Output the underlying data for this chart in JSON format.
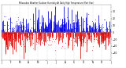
{
  "background_color": "#ffffff",
  "plot_bg_color": "#ffffff",
  "grid_color": "#aaaaaa",
  "ylim": [
    -40,
    40
  ],
  "ytick_values": [
    -30,
    -20,
    -10,
    0,
    10,
    20,
    30
  ],
  "num_points": 365,
  "blue_color": "#0000dd",
  "red_color": "#dd0000",
  "dot_blue": "#4444ff",
  "dot_red": "#ff4444",
  "num_grid_lines": 13,
  "seed": 42
}
